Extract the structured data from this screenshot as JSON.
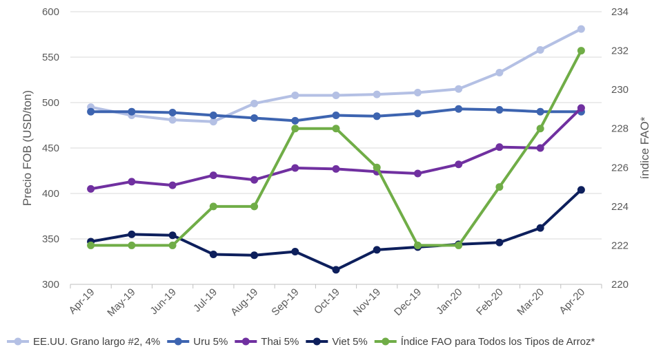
{
  "chart_data": {
    "type": "line",
    "categories": [
      "Apr-19",
      "May-19",
      "Jun-19",
      "Jul-19",
      "Aug-19",
      "Sep-19",
      "Oct-19",
      "Nov-19",
      "Dec-19",
      "Jan-20",
      "Feb-20",
      "Mar-20",
      "Apr-20"
    ],
    "ylabel": "Precio FOB (USD/ton)",
    "y2label": "índice FAO*",
    "ylim": [
      300,
      600
    ],
    "yticks": [
      300,
      350,
      400,
      450,
      500,
      550,
      600
    ],
    "y2lim": [
      220,
      234
    ],
    "y2ticks": [
      220,
      222,
      224,
      226,
      228,
      230,
      232,
      234
    ],
    "grid": true,
    "legend_position": "bottom",
    "series": [
      {
        "name": "EE.UU. Grano largo #2, 4%",
        "axis": "left",
        "color": "#b4c0e4",
        "values": [
          495,
          486,
          481,
          479,
          499,
          508,
          508,
          509,
          511,
          515,
          533,
          558,
          581
        ]
      },
      {
        "name": "Uru 5%",
        "axis": "left",
        "color": "#3d64b0",
        "values": [
          490,
          490,
          489,
          486,
          483,
          480,
          486,
          485,
          488,
          493,
          492,
          490,
          490
        ]
      },
      {
        "name": "Thai 5%",
        "axis": "left",
        "color": "#7030a0",
        "values": [
          405,
          413,
          409,
          420,
          415,
          428,
          427,
          424,
          422,
          432,
          451,
          450,
          494
        ]
      },
      {
        "name": "Viet 5%",
        "axis": "left",
        "color": "#0d1f5c",
        "values": [
          347,
          355,
          354,
          333,
          332,
          336,
          316,
          338,
          341,
          344,
          346,
          362,
          404
        ]
      },
      {
        "name": "Índice FAO para Todos los Tipos de Arroz*",
        "axis": "right",
        "color": "#70ad47",
        "values": [
          222,
          222,
          222,
          224,
          224,
          228,
          228,
          226,
          222,
          222,
          225,
          228,
          232
        ]
      }
    ]
  }
}
